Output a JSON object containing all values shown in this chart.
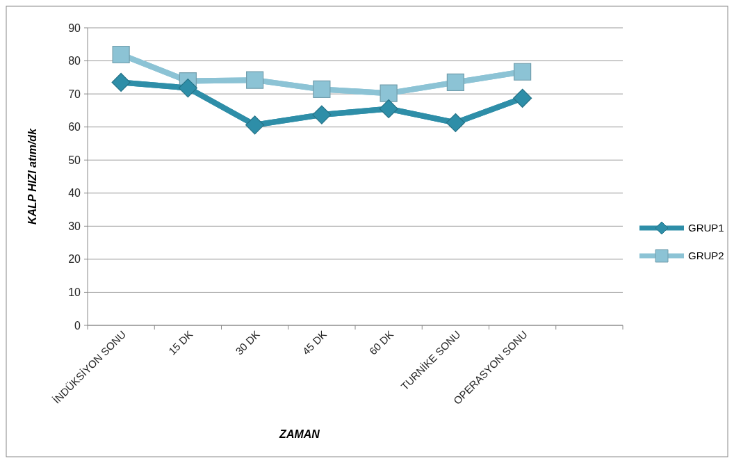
{
  "chart_data": {
    "type": "line",
    "xlabel": "ZAMAN",
    "ylabel": "KALP HIZI  atım/dk",
    "categories": [
      "İNDÜKSİYON SONU",
      "15 DK",
      "30 DK",
      "45 DK",
      "60 DK",
      "TURNİKE SONU",
      "OPERASYON SONU",
      null
    ],
    "series": [
      {
        "name": "GRUP1",
        "color": "#2e8ea8",
        "marker": "diamond",
        "values": [
          73.5,
          71.8,
          60.6,
          63.7,
          65.5,
          61.3,
          68.7,
          null
        ]
      },
      {
        "name": "GRUP2",
        "color": "#8cc3d5",
        "marker": "square",
        "values": [
          81.9,
          73.9,
          74.2,
          71.4,
          70.2,
          73.5,
          76.7,
          null
        ]
      }
    ],
    "ylim": [
      0,
      90
    ],
    "yticks": [
      0,
      10,
      20,
      30,
      40,
      50,
      60,
      70,
      80,
      90
    ],
    "grid": "y",
    "legend": "right",
    "line_style": "solid"
  }
}
